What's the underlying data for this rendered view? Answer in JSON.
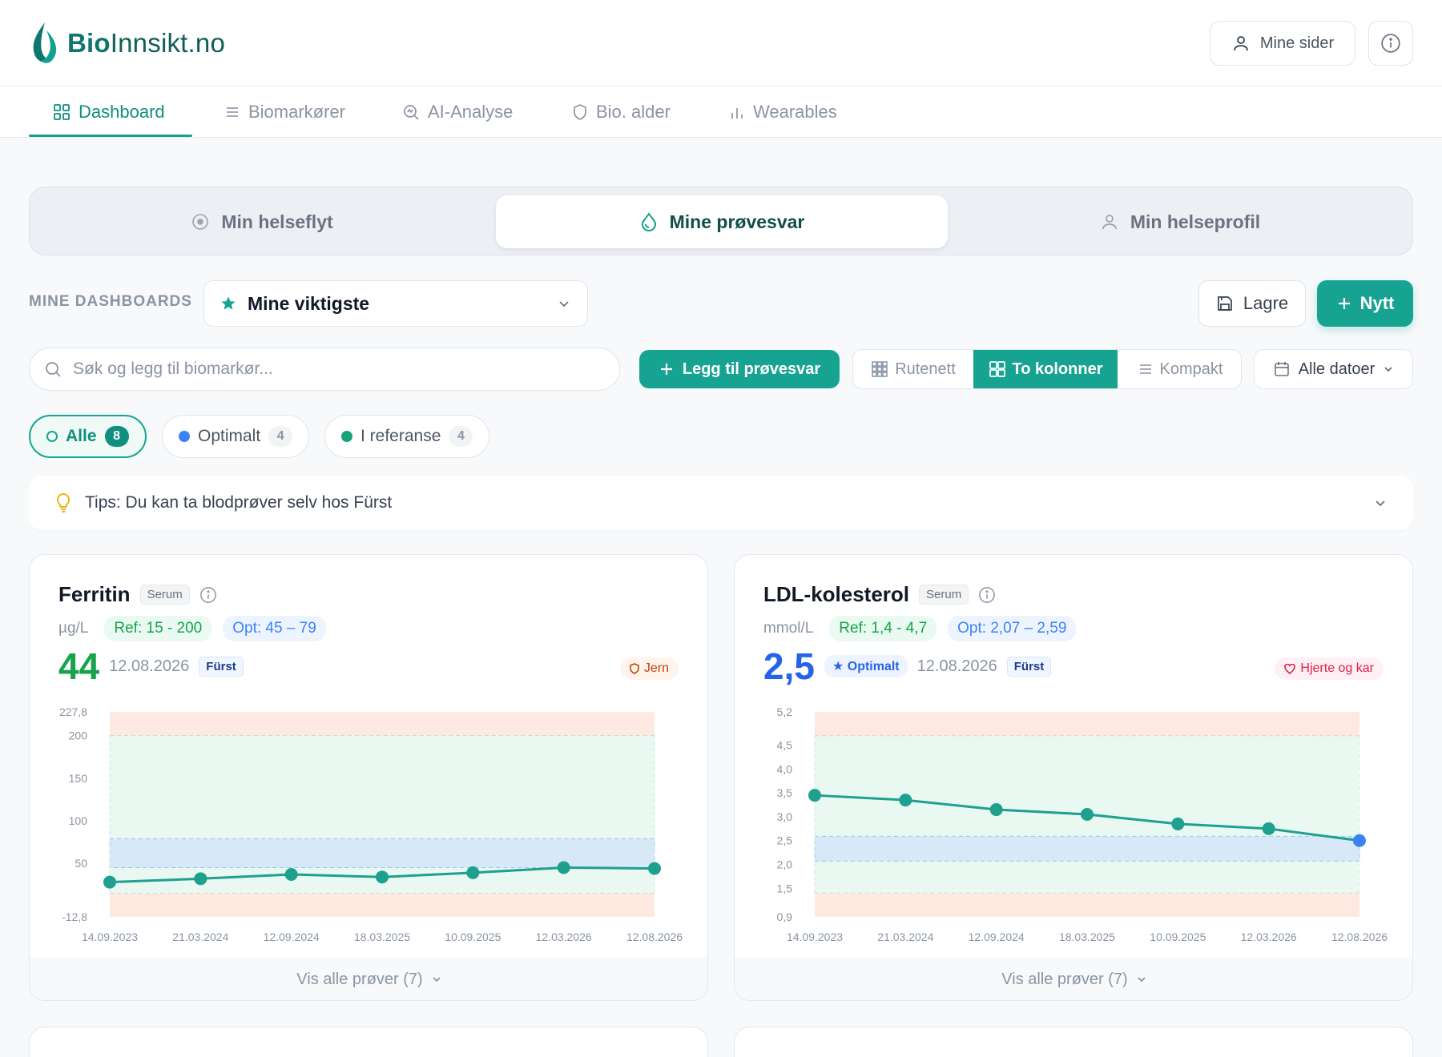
{
  "brand": {
    "name_bold": "Bio",
    "name_rest": "Innsikt.no"
  },
  "header": {
    "mine_sider_label": "Mine sider"
  },
  "nav": {
    "tabs": [
      {
        "label": "Dashboard",
        "icon": "grid-icon",
        "active": true
      },
      {
        "label": "Biomarkører",
        "icon": "list-icon"
      },
      {
        "label": "AI-Analyse",
        "icon": "ai-search-icon"
      },
      {
        "label": "Bio. alder",
        "icon": "shield-icon"
      },
      {
        "label": "Wearables",
        "icon": "bars-icon"
      }
    ]
  },
  "segments": [
    {
      "label": "Min helseflyt",
      "icon": "flow-icon"
    },
    {
      "label": "Mine prøvesvar",
      "icon": "drop-icon",
      "active": true
    },
    {
      "label": "Min helseprofil",
      "icon": "user-icon"
    }
  ],
  "dashboards": {
    "label": "MINE DASHBOARDS",
    "selected": "Mine viktigste",
    "save_label": "Lagre",
    "new_label": "Nytt"
  },
  "toolbar": {
    "search_placeholder": "Søk og legg til biomarkør...",
    "add_label": "Legg til prøvesvar",
    "views": [
      {
        "label": "Rutenett",
        "icon": "grid9-icon"
      },
      {
        "label": "To kolonner",
        "icon": "grid4-icon",
        "active": true
      },
      {
        "label": "Kompakt",
        "icon": "list-icon"
      }
    ],
    "dates_label": "Alle datoer"
  },
  "filters": [
    {
      "label": "Alle",
      "count": "8",
      "active": true,
      "color": "#17a391"
    },
    {
      "label": "Optimalt",
      "count": "4",
      "color": "#3b82f6"
    },
    {
      "label": "I referanse",
      "count": "4",
      "color": "#16a37a"
    }
  ],
  "tips": {
    "text": "Tips: Du kan ta blodprøver selv hos Fürst"
  },
  "cards": [
    {
      "title": "Ferritin",
      "sample": "Serum",
      "unit": "µg/L",
      "ref": "Ref: 15 - 200",
      "opt": "Opt: 45 – 79",
      "value": "44",
      "value_color": "#16a34a",
      "date": "12.08.2026",
      "source": "Fürst",
      "category": "Jern",
      "category_color": "#c2410c",
      "category_bg": "#fff4ec",
      "footer": "Vis alle prøver (7)",
      "chart_data": {
        "type": "line",
        "x": [
          "14.09.2023",
          "21.03.2024",
          "12.09.2024",
          "18.03.2025",
          "10.09.2025",
          "12.03.2026",
          "12.08.2026"
        ],
        "values": [
          28,
          32,
          37,
          34,
          39,
          45,
          44
        ],
        "ylim": [
          -12.8,
          227.8
        ],
        "yticks": [
          "227,8",
          "200",
          "150",
          "100",
          "50",
          "-12,8"
        ],
        "ytick_values": [
          227.8,
          200,
          150,
          100,
          50,
          -12.8
        ],
        "ref_range": [
          15,
          200
        ],
        "opt_range": [
          45,
          79
        ],
        "line_color": "#1fa08f",
        "last_point_color": "#1fa08f"
      }
    },
    {
      "title": "LDL-kolesterol",
      "sample": "Serum",
      "unit": "mmol/L",
      "ref": "Ref: 1,4 - 4,7",
      "opt": "Opt: 2,07 – 2,59",
      "value": "2,5",
      "value_color": "#2563eb",
      "badge": "★ Optimalt",
      "date": "12.08.2026",
      "source": "Fürst",
      "category": "Hjerte og kar",
      "category_color": "#e11d48",
      "category_bg": "#fff1f3",
      "footer": "Vis alle prøver (7)",
      "chart_data": {
        "type": "line",
        "x": [
          "14.09.2023",
          "21.03.2024",
          "12.09.2024",
          "18.03.2025",
          "10.09.2025",
          "12.03.2026",
          "12.08.2026"
        ],
        "values": [
          3.45,
          3.35,
          3.15,
          3.05,
          2.85,
          2.75,
          2.5
        ],
        "ylim": [
          0.9,
          5.2
        ],
        "yticks": [
          "5,2",
          "4,5",
          "4,0",
          "3,5",
          "3,0",
          "2,5",
          "2,0",
          "1,5",
          "0,9"
        ],
        "ytick_values": [
          5.2,
          4.5,
          4.0,
          3.5,
          3.0,
          2.5,
          2.0,
          1.5,
          0.9
        ],
        "ref_range": [
          1.4,
          4.7
        ],
        "opt_range": [
          2.07,
          2.59
        ],
        "line_color": "#1fa08f",
        "last_point_color": "#3b82f6"
      }
    }
  ]
}
